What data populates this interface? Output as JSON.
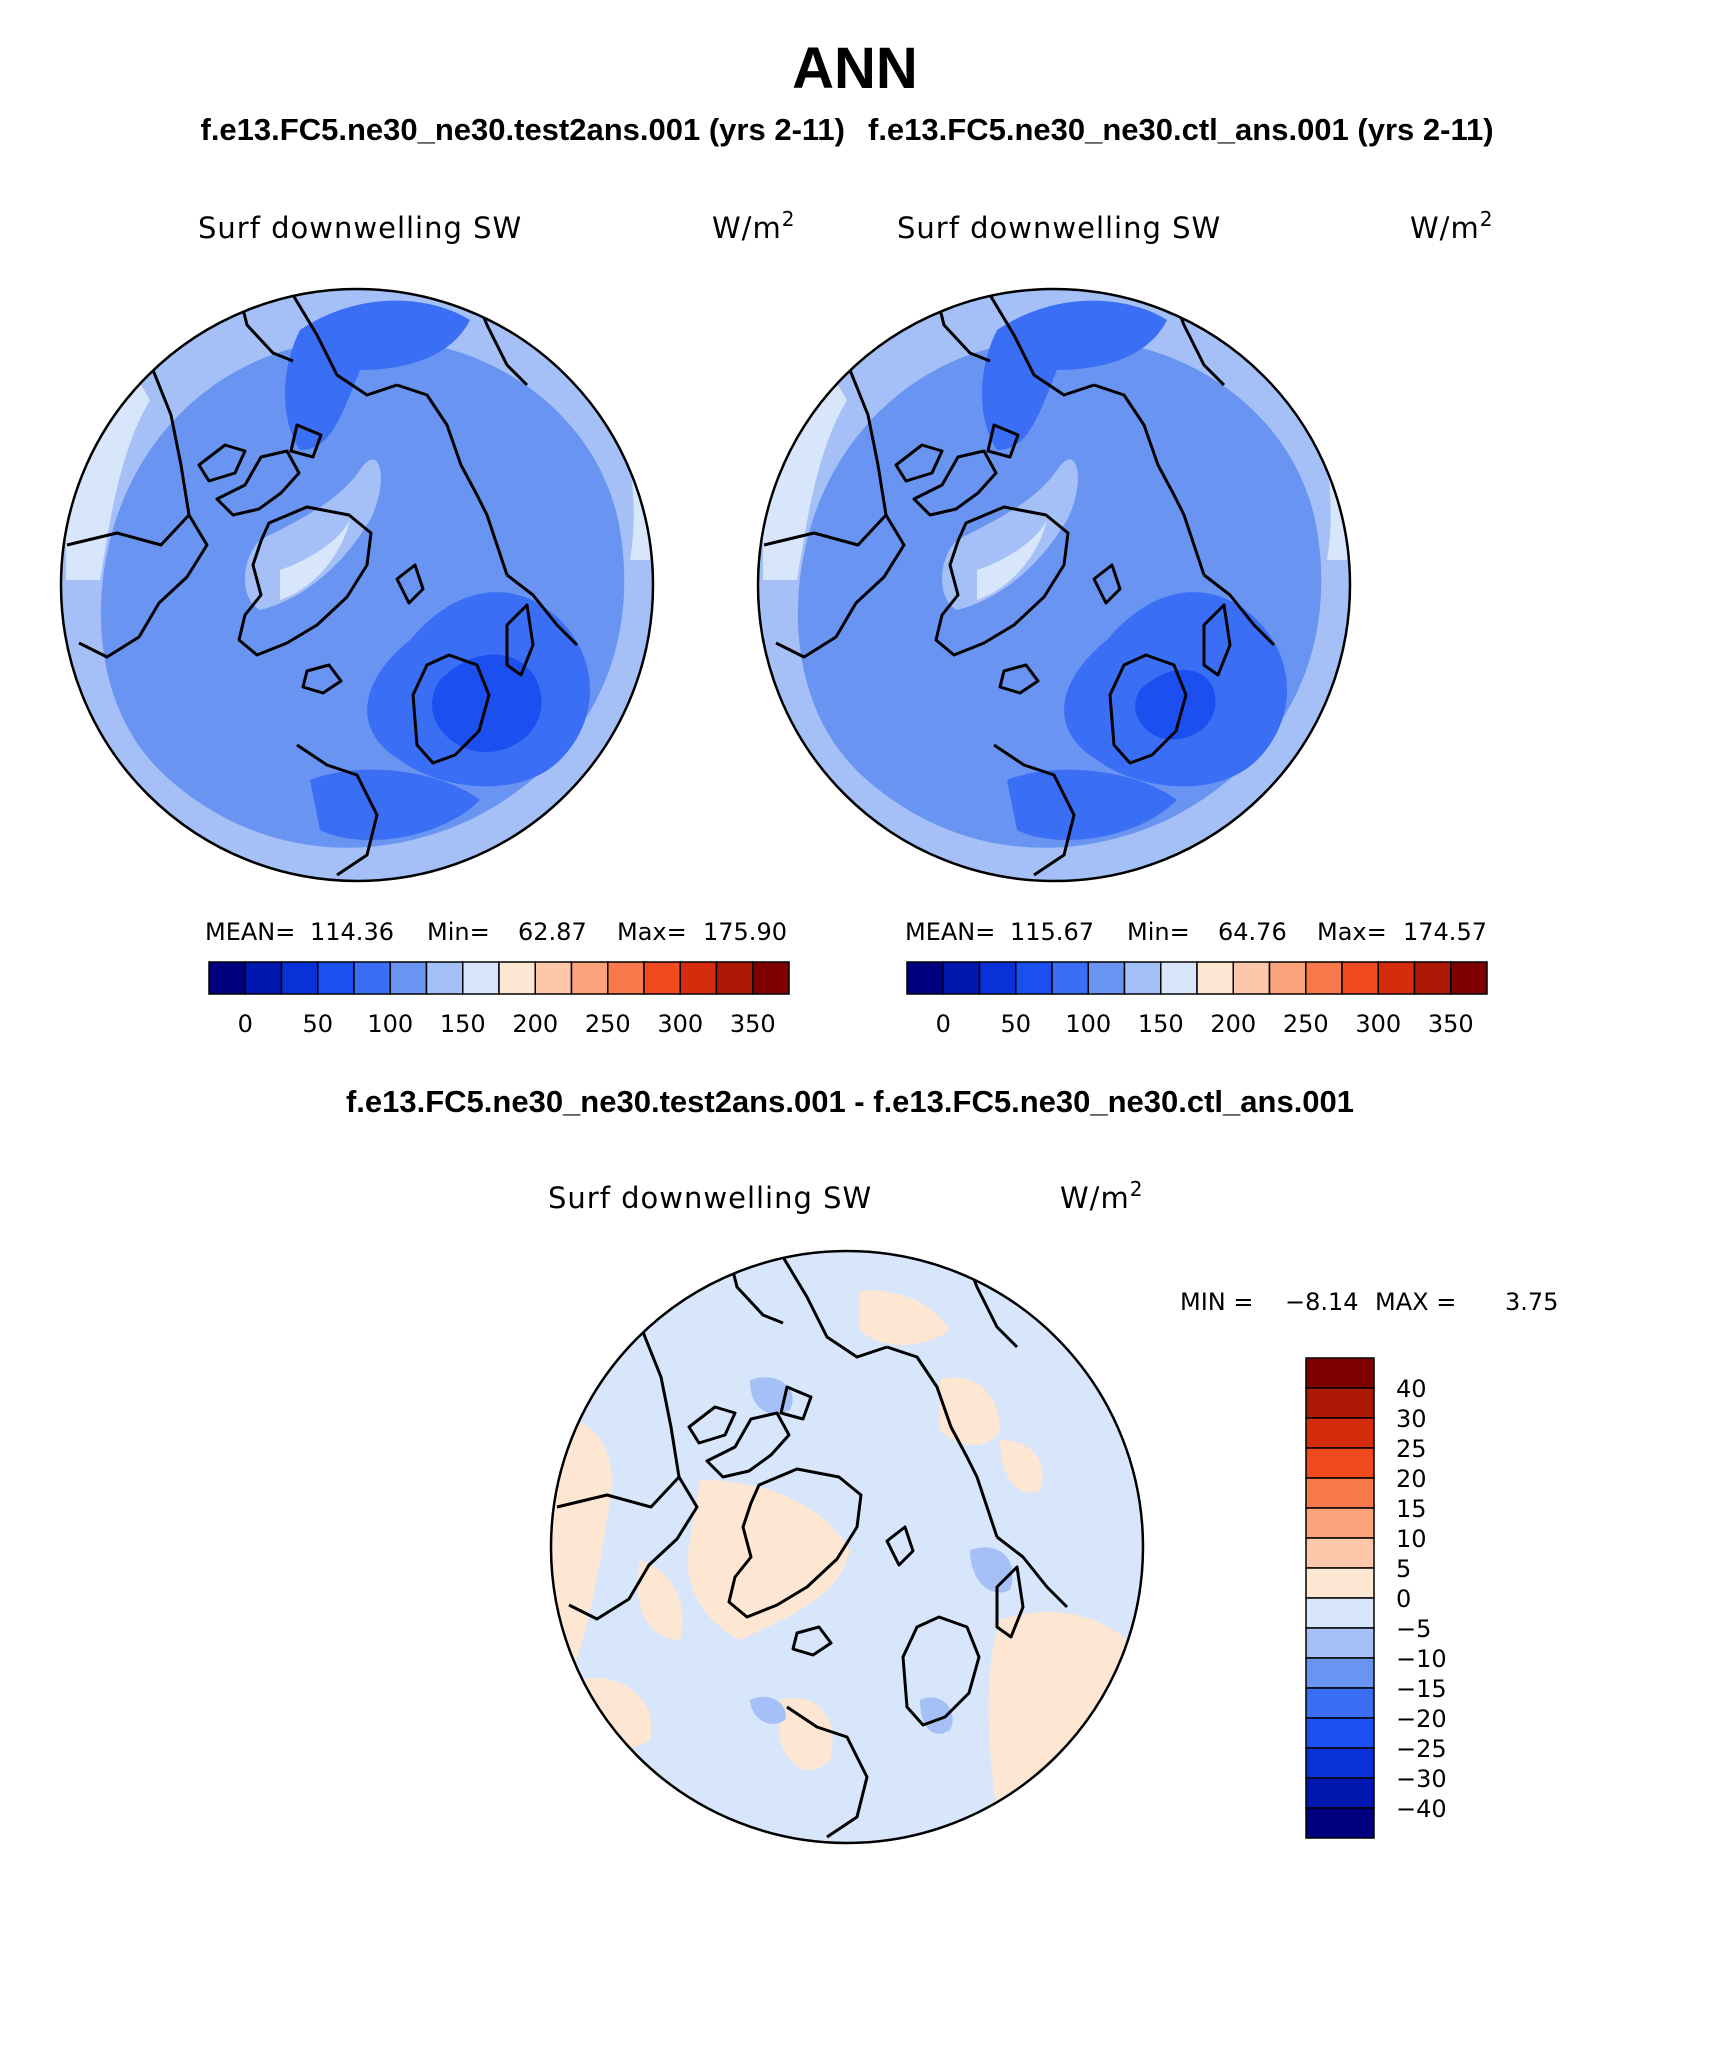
{
  "figure": {
    "title": "ANN",
    "case_test": "f.e13.FC5.ne30_ne30.test2ans.001 (yrs 2-11)",
    "case_ctl": "f.e13.FC5.ne30_ne30.ctl_ans.001 (yrs 2-11)",
    "diff_title": "f.e13.FC5.ne30_ne30.test2ans.001 - f.e13.FC5.ne30_ne30.ctl_ans.001"
  },
  "panels": {
    "test": {
      "variable": "Surf downwelling SW",
      "units": "W/m",
      "units_sup": "2",
      "mean_label": "MEAN=",
      "mean_value": "114.36",
      "min_label": "Min=",
      "min_value": "62.87",
      "max_label": "Max=",
      "max_value": "175.90"
    },
    "ctl": {
      "variable": "Surf downwelling SW",
      "units": "W/m",
      "units_sup": "2",
      "mean_label": "MEAN=",
      "mean_value": "115.67",
      "min_label": "Min=",
      "min_value": "64.76",
      "max_label": "Max=",
      "max_value": "174.57"
    },
    "diff": {
      "variable": "Surf downwelling SW",
      "units": "W/m",
      "units_sup": "2",
      "min_label": "MIN =",
      "min_value": "−8.14",
      "max_label": "MAX =",
      "max_value": "3.75"
    }
  },
  "colorbar_main": {
    "colors": [
      "#00007f",
      "#0018b0",
      "#0a30d8",
      "#1c4fef",
      "#3a6ef5",
      "#6a94f2",
      "#a5c0f7",
      "#d7e6fb",
      "#fde7d3",
      "#fcc8a9",
      "#fba37a",
      "#f87a4c",
      "#f04a1e",
      "#d42c0c",
      "#ac1a05",
      "#7e0000"
    ],
    "ticks": [
      "0",
      "50",
      "100",
      "150",
      "200",
      "250",
      "300",
      "350"
    ]
  },
  "colorbar_diff": {
    "colors": [
      "#7e0000",
      "#ac1a05",
      "#d42c0c",
      "#f04a1e",
      "#f87a4c",
      "#fba37a",
      "#fcc8a9",
      "#fde7d3",
      "#d7e6fb",
      "#a5c0f7",
      "#6a94f2",
      "#3a6ef5",
      "#1c4fef",
      "#0a30d8",
      "#0018b0",
      "#00007f"
    ],
    "labels": [
      "40",
      "30",
      "25",
      "20",
      "15",
      "10",
      "5",
      "0",
      "−5",
      "−10",
      "−15",
      "−20",
      "−25",
      "−30",
      "−40"
    ]
  },
  "map_colors": {
    "sw_50_100": "#3a6ef5",
    "sw_100_150": "#6a94f2",
    "sw_150_200": "#a5c0f7",
    "sw_200_250": "#d7e6fb",
    "sw_deep": "#1c4fef",
    "diff_neg_small": "#d7e6fb",
    "diff_neg_mid": "#a5c0f7",
    "diff_neg_large": "#6a94f2",
    "diff_pos_small": "#fde7d3"
  }
}
